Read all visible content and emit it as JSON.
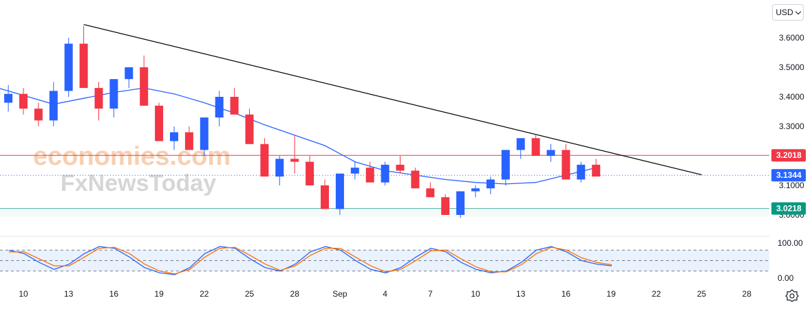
{
  "currency": "USD",
  "chart_data": [
    {
      "type": "candlestick",
      "title": "",
      "y_ticks": [
        "3.6000",
        "3.5000",
        "3.4000",
        "3.3000",
        "3.1000",
        "3.0000"
      ],
      "x_ticks": [
        "10",
        "13",
        "16",
        "19",
        "22",
        "25",
        "28",
        "Sep",
        "4",
        "7",
        "10",
        "13",
        "16",
        "19",
        "22",
        "25",
        "28"
      ],
      "ylim": [
        2.975,
        3.705
      ],
      "grid": false,
      "price_labels": [
        {
          "text": "3.2018",
          "value": 3.2018,
          "color": "#f23645",
          "kind": "resistance-line"
        },
        {
          "text": "3.1344",
          "value": 3.1344,
          "color": "#2962ff",
          "kind": "last-price"
        },
        {
          "text": "3.0218",
          "value": 3.0218,
          "color": "#089981",
          "kind": "support-line"
        }
      ],
      "trendline": {
        "from": {
          "x": "14 Aug",
          "y": 3.645
        },
        "to": {
          "x": "24 Sep",
          "y": 3.136
        }
      },
      "moving_average": {
        "color": "#2962ff",
        "points": [
          [
            "8 Aug",
            3.435
          ],
          [
            "10 Aug",
            3.405
          ],
          [
            "12 Aug",
            3.375
          ],
          [
            "14 Aug",
            3.395
          ],
          [
            "16 Aug",
            3.415
          ],
          [
            "18 Aug",
            3.43
          ],
          [
            "20 Aug",
            3.41
          ],
          [
            "22 Aug",
            3.38
          ],
          [
            "24 Aug",
            3.345
          ],
          [
            "26 Aug",
            3.305
          ],
          [
            "28 Aug",
            3.27
          ],
          [
            "30 Aug",
            3.235
          ],
          [
            "1 Sep",
            3.18
          ],
          [
            "3 Sep",
            3.15
          ],
          [
            "5 Sep",
            3.135
          ],
          [
            "7 Sep",
            3.12
          ],
          [
            "9 Sep",
            3.11
          ],
          [
            "11 Sep",
            3.105
          ],
          [
            "13 Sep",
            3.11
          ],
          [
            "15 Sep",
            3.135
          ],
          [
            "17 Sep",
            3.16
          ]
        ]
      },
      "watermark": [
        "economies.com",
        "FxNewsToday"
      ],
      "candles": [
        {
          "x": "8 Aug",
          "path": [
            3.42,
            3.36,
            3.44,
            3.38
          ]
        },
        {
          "x": "9 Aug",
          "path": [
            3.38,
            3.44,
            3.35,
            3.41
          ]
        },
        {
          "x": "10 Aug",
          "path": [
            3.41,
            3.34,
            3.43,
            3.36
          ]
        },
        {
          "x": "11 Aug",
          "path": [
            3.36,
            3.3,
            3.38,
            3.32
          ]
        },
        {
          "x": "12 Aug",
          "path": [
            3.32,
            3.45,
            3.3,
            3.42
          ]
        },
        {
          "x": "13 Aug",
          "path": [
            3.42,
            3.6,
            3.4,
            3.58
          ]
        },
        {
          "x": "14 Aug",
          "path": [
            3.58,
            3.5,
            3.64,
            3.43
          ]
        },
        {
          "x": "15 Aug",
          "path": [
            3.43,
            3.32,
            3.45,
            3.36
          ]
        },
        {
          "x": "16 Aug",
          "path": [
            3.36,
            3.44,
            3.33,
            3.46
          ]
        },
        {
          "x": "17 Aug",
          "path": [
            3.46,
            3.49,
            3.43,
            3.5
          ]
        },
        {
          "x": "18 Aug",
          "path": [
            3.5,
            3.42,
            3.54,
            3.37
          ]
        },
        {
          "x": "19 Aug",
          "path": [
            3.37,
            3.3,
            3.38,
            3.25
          ]
        },
        {
          "x": "20 Aug",
          "path": [
            3.25,
            3.3,
            3.22,
            3.28
          ]
        },
        {
          "x": "21 Aug",
          "path": [
            3.28,
            3.24,
            3.3,
            3.22
          ]
        },
        {
          "x": "22 Aug",
          "path": [
            3.22,
            3.3,
            3.2,
            3.33
          ]
        },
        {
          "x": "23 Aug",
          "path": [
            3.33,
            3.42,
            3.3,
            3.4
          ]
        },
        {
          "x": "24 Aug",
          "path": [
            3.4,
            3.38,
            3.43,
            3.34
          ]
        },
        {
          "x": "25 Aug",
          "path": [
            3.34,
            3.28,
            3.36,
            3.24
          ]
        },
        {
          "x": "26 Aug",
          "path": [
            3.24,
            3.18,
            3.26,
            3.13
          ]
        },
        {
          "x": "27 Aug",
          "path": [
            3.13,
            3.2,
            3.1,
            3.19
          ]
        },
        {
          "x": "28 Aug",
          "path": [
            3.19,
            3.14,
            3.27,
            3.18
          ]
        },
        {
          "x": "29 Aug",
          "path": [
            3.18,
            3.12,
            3.2,
            3.1
          ]
        },
        {
          "x": "30 Aug",
          "path": [
            3.1,
            3.03,
            3.12,
            3.02
          ]
        },
        {
          "x": "31 Aug",
          "path": [
            3.02,
            3.1,
            3.0,
            3.14
          ]
        },
        {
          "x": "1 Sep",
          "path": [
            3.14,
            3.18,
            3.12,
            3.16
          ]
        },
        {
          "x": "2 Sep",
          "path": [
            3.16,
            3.12,
            3.18,
            3.11
          ]
        },
        {
          "x": "3 Sep",
          "path": [
            3.11,
            3.18,
            3.1,
            3.17
          ]
        },
        {
          "x": "4 Sep",
          "path": [
            3.17,
            3.2,
            3.14,
            3.15
          ]
        },
        {
          "x": "5 Sep",
          "path": [
            3.15,
            3.1,
            3.16,
            3.09
          ]
        },
        {
          "x": "6 Sep",
          "path": [
            3.09,
            3.08,
            3.11,
            3.06
          ]
        },
        {
          "x": "7 Sep",
          "path": [
            3.06,
            3.01,
            3.07,
            3.0
          ]
        },
        {
          "x": "8 Sep",
          "path": [
            3.0,
            3.07,
            2.99,
            3.08
          ]
        },
        {
          "x": "9 Sep",
          "path": [
            3.08,
            3.1,
            3.06,
            3.09
          ]
        },
        {
          "x": "10 Sep",
          "path": [
            3.09,
            3.13,
            3.07,
            3.12
          ]
        },
        {
          "x": "11 Sep",
          "path": [
            3.12,
            3.2,
            3.1,
            3.22
          ]
        },
        {
          "x": "12 Sep",
          "path": [
            3.22,
            3.24,
            3.19,
            3.26
          ]
        },
        {
          "x": "13 Sep",
          "path": [
            3.26,
            3.21,
            3.27,
            3.2
          ]
        },
        {
          "x": "14 Sep",
          "path": [
            3.2,
            3.24,
            3.18,
            3.22
          ]
        },
        {
          "x": "15 Sep",
          "path": [
            3.22,
            3.14,
            3.24,
            3.12
          ]
        },
        {
          "x": "16 Sep",
          "path": [
            3.12,
            3.18,
            3.11,
            3.17
          ]
        },
        {
          "x": "17 Sep",
          "path": [
            3.17,
            3.13,
            3.19,
            3.13
          ]
        }
      ]
    },
    {
      "type": "line",
      "title": "",
      "y_ticks": [
        "100.00",
        "0.00"
      ],
      "ylim": [
        0,
        100
      ],
      "band": [
        20,
        80
      ],
      "grid": false,
      "series": [
        {
          "color": "#2962ff",
          "values": [
            80,
            70,
            45,
            25,
            40,
            70,
            90,
            85,
            60,
            30,
            15,
            10,
            30,
            70,
            90,
            85,
            55,
            30,
            20,
            40,
            75,
            90,
            80,
            50,
            25,
            15,
            30,
            60,
            85,
            75,
            45,
            25,
            15,
            20,
            45,
            80,
            90,
            75,
            50,
            40,
            35
          ]
        },
        {
          "color": "#ff6d00",
          "values": [
            75,
            75,
            55,
            35,
            35,
            60,
            85,
            88,
            70,
            40,
            20,
            12,
            25,
            60,
            85,
            88,
            65,
            40,
            22,
            35,
            65,
            85,
            85,
            60,
            35,
            18,
            25,
            50,
            78,
            80,
            55,
            32,
            18,
            18,
            38,
            70,
            88,
            80,
            58,
            45,
            38
          ]
        }
      ]
    }
  ]
}
